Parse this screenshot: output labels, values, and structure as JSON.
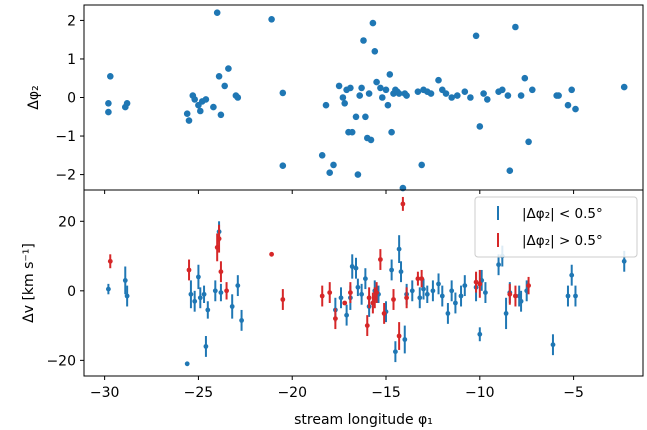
{
  "chart_data": [
    {
      "type": "scatter",
      "panel": "top",
      "xlabel": "",
      "ylabel": "Δφ₂",
      "xlim": [
        -31.1,
        -1.3
      ],
      "ylim": [
        -2.4,
        2.4
      ],
      "yticks": [
        -2,
        -1,
        0,
        1,
        2
      ],
      "ytick_labels": [
        "−2",
        "−1",
        "0",
        "1",
        "2"
      ],
      "color": "#1f77b4",
      "points": [
        [
          -29.8,
          -0.15
        ],
        [
          -29.7,
          0.55
        ],
        [
          -29.8,
          -0.38
        ],
        [
          -28.9,
          -0.25
        ],
        [
          -28.8,
          -0.15
        ],
        [
          -25.6,
          -0.42
        ],
        [
          -25.5,
          -0.6
        ],
        [
          -25.3,
          0.05
        ],
        [
          -25.2,
          -0.05
        ],
        [
          -25.0,
          -0.2
        ],
        [
          -24.9,
          -0.35
        ],
        [
          -24.8,
          -0.1
        ],
        [
          -24.6,
          -0.05
        ],
        [
          -24.2,
          -0.25
        ],
        [
          -24.0,
          2.2
        ],
        [
          -23.9,
          0.55
        ],
        [
          -23.8,
          -0.45
        ],
        [
          -23.6,
          0.3
        ],
        [
          -23.4,
          0.75
        ],
        [
          -23.0,
          0.05
        ],
        [
          -22.9,
          0.0
        ],
        [
          -21.1,
          2.03
        ],
        [
          -20.5,
          0.12
        ],
        [
          -20.5,
          -1.77
        ],
        [
          -18.4,
          -1.5
        ],
        [
          -18.2,
          -0.2
        ],
        [
          -18.0,
          -1.95
        ],
        [
          -17.8,
          -1.75
        ],
        [
          -17.5,
          0.3
        ],
        [
          -17.3,
          0.0
        ],
        [
          -17.2,
          -0.15
        ],
        [
          -17.1,
          0.2
        ],
        [
          -17.0,
          -0.9
        ],
        [
          -16.9,
          0.25
        ],
        [
          -16.8,
          -0.9
        ],
        [
          -16.6,
          -0.5
        ],
        [
          -16.5,
          -2.0
        ],
        [
          -16.4,
          0.05
        ],
        [
          -16.3,
          0.25
        ],
        [
          -16.2,
          1.48
        ],
        [
          -16.1,
          -0.5
        ],
        [
          -16.0,
          -1.05
        ],
        [
          -15.9,
          0.1
        ],
        [
          -15.8,
          -1.1
        ],
        [
          -15.7,
          1.93
        ],
        [
          -15.6,
          1.2
        ],
        [
          -15.5,
          0.4
        ],
        [
          -15.3,
          0.25
        ],
        [
          -15.2,
          0.0
        ],
        [
          -15.0,
          0.2
        ],
        [
          -14.9,
          -0.2
        ],
        [
          -14.8,
          0.6
        ],
        [
          -14.7,
          -0.9
        ],
        [
          -14.6,
          0.1
        ],
        [
          -14.5,
          0.2
        ],
        [
          -14.4,
          0.15
        ],
        [
          -14.3,
          0.1
        ],
        [
          -14.1,
          -2.35
        ],
        [
          -14.0,
          0.1
        ],
        [
          -13.9,
          0.05
        ],
        [
          -13.3,
          0.15
        ],
        [
          -13.1,
          -1.75
        ],
        [
          -13.0,
          0.2
        ],
        [
          -12.8,
          0.15
        ],
        [
          -12.6,
          0.1
        ],
        [
          -12.2,
          0.45
        ],
        [
          -12.0,
          0.2
        ],
        [
          -11.8,
          0.1
        ],
        [
          -11.5,
          0.0
        ],
        [
          -11.2,
          0.05
        ],
        [
          -10.8,
          0.15
        ],
        [
          -10.5,
          0.0
        ],
        [
          -10.2,
          1.6
        ],
        [
          -10.0,
          -0.75
        ],
        [
          -9.8,
          0.1
        ],
        [
          -9.6,
          -0.05
        ],
        [
          -9.0,
          0.15
        ],
        [
          -8.8,
          0.2
        ],
        [
          -8.5,
          0.05
        ],
        [
          -8.4,
          -1.9
        ],
        [
          -8.1,
          1.83
        ],
        [
          -7.8,
          0.05
        ],
        [
          -7.6,
          0.5
        ],
        [
          -7.4,
          -1.15
        ],
        [
          -7.2,
          0.2
        ],
        [
          -5.9,
          0.05
        ],
        [
          -5.8,
          0.05
        ],
        [
          -5.3,
          -0.2
        ],
        [
          -5.1,
          0.2
        ],
        [
          -4.9,
          -0.3
        ],
        [
          -2.3,
          0.27
        ]
      ]
    },
    {
      "type": "scatter",
      "panel": "bottom",
      "xlabel": "stream longitude φ₁",
      "ylabel": "Δv [km s⁻¹]",
      "xlim": [
        -31.1,
        -1.3
      ],
      "ylim": [
        -24.5,
        29.0
      ],
      "xticks": [
        -30,
        -25,
        -20,
        -15,
        -10,
        -5
      ],
      "xtick_labels": [
        "−30",
        "−25",
        "−20",
        "−15",
        "−10",
        "−5"
      ],
      "yticks": [
        -20,
        0,
        20
      ],
      "ytick_labels": [
        "−20",
        "0",
        "20"
      ],
      "legend": {
        "placement": "upper right",
        "entries": [
          {
            "label": "|Δφ₂| < 0.5°",
            "color": "#1f77b4"
          },
          {
            "label": "|Δφ₂| > 0.5°",
            "color": "#d62728"
          }
        ]
      },
      "series": [
        {
          "name": "|Δφ₂| < 0.5°",
          "color": "#1f77b4",
          "points": [
            [
              -29.8,
              0.5,
              1.5
            ],
            [
              -28.9,
              3.0,
              4.0
            ],
            [
              -28.8,
              -1.5,
              3.0
            ],
            [
              -25.6,
              -21.0,
              0
            ],
            [
              -25.4,
              -1.0,
              4.0
            ],
            [
              -25.2,
              -3.0,
              3.0
            ],
            [
              -25.0,
              4.0,
              3.5
            ],
            [
              -24.9,
              -2.0,
              3.0
            ],
            [
              -24.7,
              -1.0,
              2.5
            ],
            [
              -24.6,
              -16.0,
              3.0
            ],
            [
              -24.5,
              -5.5,
              2.5
            ],
            [
              -24.1,
              0.0,
              3.0
            ],
            [
              -23.9,
              17.0,
              3.0
            ],
            [
              -23.8,
              -0.5,
              2.5
            ],
            [
              -23.2,
              -4.5,
              3.5
            ],
            [
              -22.9,
              1.5,
              3.0
            ],
            [
              -22.7,
              -8.5,
              3.0
            ],
            [
              -17.7,
              -5.5,
              3.5
            ],
            [
              -17.4,
              -2.0,
              3.0
            ],
            [
              -17.1,
              -7.0,
              3.0
            ],
            [
              -16.9,
              -2.0,
              3.5
            ],
            [
              -16.8,
              7.0,
              3.5
            ],
            [
              -16.6,
              6.5,
              3.0
            ],
            [
              -16.5,
              1.0,
              2.5
            ],
            [
              -16.3,
              -1.0,
              3.0
            ],
            [
              -16.1,
              3.5,
              3.0
            ],
            [
              -15.9,
              -4.5,
              3.0
            ],
            [
              -15.6,
              0.0,
              3.0
            ],
            [
              -15.4,
              -1.0,
              2.5
            ],
            [
              -15.0,
              -6.0,
              3.0
            ],
            [
              -14.7,
              6.0,
              3.0
            ],
            [
              -14.5,
              -17.5,
              3.0
            ],
            [
              -14.3,
              12.0,
              4.0
            ],
            [
              -14.2,
              5.5,
              3.0
            ],
            [
              -14.0,
              -14.0,
              4.0
            ],
            [
              -13.9,
              -1.0,
              3.0
            ],
            [
              -13.6,
              0.0,
              3.0
            ],
            [
              -13.2,
              -2.0,
              3.0
            ],
            [
              -13.0,
              0.5,
              3.0
            ],
            [
              -12.8,
              -1.0,
              2.5
            ],
            [
              -12.5,
              0.0,
              3.0
            ],
            [
              -12.2,
              2.0,
              3.0
            ],
            [
              -12.0,
              -1.5,
              3.0
            ],
            [
              -11.7,
              -6.5,
              3.0
            ],
            [
              -11.5,
              0.0,
              3.0
            ],
            [
              -11.3,
              -3.5,
              3.0
            ],
            [
              -11.0,
              -1.5,
              3.0
            ],
            [
              -10.8,
              1.5,
              3.0
            ],
            [
              -10.2,
              1.0,
              4.0
            ],
            [
              -10.0,
              -12.5,
              2.0
            ],
            [
              -9.9,
              3.0,
              3.0
            ],
            [
              -9.7,
              -0.5,
              3.0
            ],
            [
              -9.0,
              7.5,
              3.0
            ],
            [
              -8.8,
              10.0,
              3.0
            ],
            [
              -8.6,
              -6.5,
              4.5
            ],
            [
              -8.4,
              -0.5,
              3.0
            ],
            [
              -7.9,
              -1.5,
              3.0
            ],
            [
              -7.8,
              -3.0,
              3.0
            ],
            [
              -7.5,
              0.0,
              3.0
            ],
            [
              -6.1,
              -15.5,
              3.0
            ],
            [
              -5.3,
              -1.5,
              3.0
            ],
            [
              -5.1,
              4.5,
              3.0
            ],
            [
              -4.9,
              -1.5,
              3.0
            ],
            [
              -2.3,
              8.5,
              3.0
            ]
          ]
        },
        {
          "name": "|Δφ₂| > 0.5°",
          "color": "#d62728",
          "points": [
            [
              -29.7,
              8.5,
              2.0
            ],
            [
              -25.5,
              6.0,
              3.0
            ],
            [
              -24.0,
              12.5,
              4.0
            ],
            [
              -23.9,
              15.0,
              4.0
            ],
            [
              -23.8,
              5.5,
              3.0
            ],
            [
              -23.5,
              0.0,
              2.5
            ],
            [
              -21.1,
              10.5,
              0
            ],
            [
              -20.5,
              -2.5,
              3.0
            ],
            [
              -18.4,
              -1.5,
              3.0
            ],
            [
              -18.0,
              -0.5,
              3.0
            ],
            [
              -17.7,
              -8.0,
              3.0
            ],
            [
              -17.2,
              -3.5,
              0
            ],
            [
              -16.9,
              -0.5,
              3.0
            ],
            [
              -16.0,
              -10.0,
              3.0
            ],
            [
              -15.9,
              -2.0,
              3.0
            ],
            [
              -15.7,
              -3.5,
              3.0
            ],
            [
              -15.6,
              -2.0,
              3.0
            ],
            [
              -15.5,
              -0.5,
              3.0
            ],
            [
              -15.3,
              9.0,
              3.0
            ],
            [
              -15.1,
              -6.5,
              3.0
            ],
            [
              -14.6,
              -2.5,
              3.0
            ],
            [
              -14.3,
              -13.0,
              4.0
            ],
            [
              -14.1,
              25.0,
              2.0
            ],
            [
              -13.9,
              -2.0,
              3.0
            ],
            [
              -13.3,
              3.5,
              2.0
            ],
            [
              -13.1,
              3.5,
              2.5
            ],
            [
              -10.2,
              2.5,
              3.0
            ],
            [
              -10.0,
              2.0,
              4.0
            ],
            [
              -8.4,
              -1.0,
              3.0
            ],
            [
              -8.1,
              -1.5,
              3.0
            ],
            [
              -7.4,
              1.5,
              2.5
            ]
          ]
        }
      ]
    }
  ]
}
